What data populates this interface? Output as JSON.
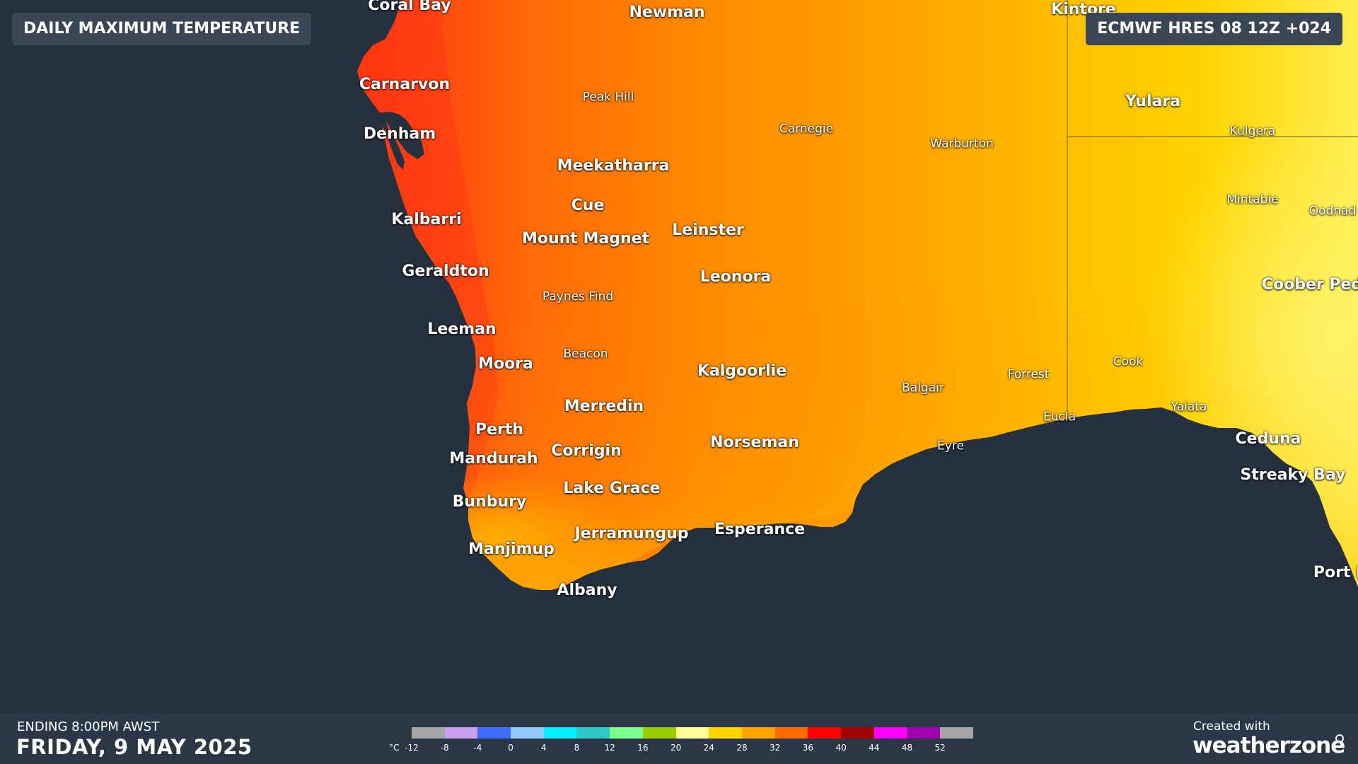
{
  "header": {
    "title": "DAILY MAXIMUM TEMPERATURE",
    "model_run": "ECMWF HRES 08 12Z +024"
  },
  "colors": {
    "ocean": "#26313f",
    "land_hot": "#ff3a14",
    "land_warm": "#ff8a00",
    "land_mild": "#ffc400",
    "land_cool": "#fff06a"
  },
  "places": [
    {
      "name": "Coral Bay",
      "class": "major"
    },
    {
      "name": "Newman",
      "class": "major"
    },
    {
      "name": "Kintore",
      "class": "major"
    },
    {
      "name": "Carnarvon",
      "class": "major"
    },
    {
      "name": "Peak Hill",
      "class": "minor"
    },
    {
      "name": "Yulara",
      "class": "major"
    },
    {
      "name": "Denham",
      "class": "major"
    },
    {
      "name": "Carnegie",
      "class": "minor"
    },
    {
      "name": "Warburton",
      "class": "minor"
    },
    {
      "name": "Kulgera",
      "class": "minor"
    },
    {
      "name": "Meekatharra",
      "class": "major"
    },
    {
      "name": "Mintabie",
      "class": "minor"
    },
    {
      "name": "Oodnad",
      "class": "minor"
    },
    {
      "name": "Cue",
      "class": "major"
    },
    {
      "name": "Kalbarri",
      "class": "major"
    },
    {
      "name": "Leinster",
      "class": "major"
    },
    {
      "name": "Mount Magnet",
      "class": "major"
    },
    {
      "name": "Geraldton",
      "class": "major"
    },
    {
      "name": "Leonora",
      "class": "major"
    },
    {
      "name": "Coober Ped",
      "class": "major"
    },
    {
      "name": "Paynes Find",
      "class": "minor"
    },
    {
      "name": "Leeman",
      "class": "major"
    },
    {
      "name": "Beacon",
      "class": "minor"
    },
    {
      "name": "Moora",
      "class": "major"
    },
    {
      "name": "Cook",
      "class": "minor"
    },
    {
      "name": "Kalgoorlie",
      "class": "major"
    },
    {
      "name": "Forrest",
      "class": "minor"
    },
    {
      "name": "Balgair",
      "class": "minor"
    },
    {
      "name": "Merredin",
      "class": "major"
    },
    {
      "name": "Yalata",
      "class": "minor"
    },
    {
      "name": "Eucla",
      "class": "minor"
    },
    {
      "name": "Perth",
      "class": "major"
    },
    {
      "name": "Ceduna",
      "class": "major"
    },
    {
      "name": "Norseman",
      "class": "major"
    },
    {
      "name": "Eyre",
      "class": "minor"
    },
    {
      "name": "Corrigin",
      "class": "major"
    },
    {
      "name": "Mandurah",
      "class": "major"
    },
    {
      "name": "Streaky Bay",
      "class": "major"
    },
    {
      "name": "Lake Grace",
      "class": "major"
    },
    {
      "name": "Bunbury",
      "class": "major"
    },
    {
      "name": "Esperance",
      "class": "major"
    },
    {
      "name": "Jerramungup",
      "class": "major"
    },
    {
      "name": "Manjimup",
      "class": "major"
    },
    {
      "name": "Port L",
      "class": "major"
    },
    {
      "name": "Albany",
      "class": "major"
    }
  ],
  "footer": {
    "ending": "ENDING 8:00PM AWST",
    "date": "FRIDAY, 9 MAY 2025",
    "created_with": "Created with",
    "brand": "weatherzone"
  },
  "legend": {
    "unit": "°C",
    "ticks": [
      "-12",
      "-8",
      "-4",
      "0",
      "4",
      "8",
      "12",
      "16",
      "20",
      "24",
      "28",
      "32",
      "36",
      "40",
      "44",
      "48",
      "52"
    ],
    "colors": [
      "#a6a6a6",
      "#c9a0f0",
      "#3f6bff",
      "#95c8ff",
      "#00f0ff",
      "#2ec9c2",
      "#7dff8f",
      "#9acd00",
      "#ffff99",
      "#ffd400",
      "#ffa500",
      "#ff6a00",
      "#ff0000",
      "#a00000",
      "#ff00ff",
      "#a000b0",
      "#a6a6a6"
    ]
  }
}
